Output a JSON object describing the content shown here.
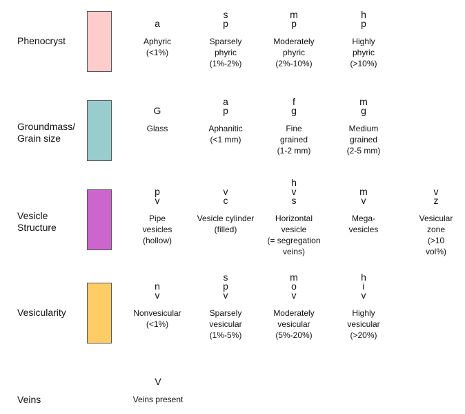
{
  "rows": [
    {
      "label": "Phenocryst",
      "color": "#FFCCCC",
      "items": [
        {
          "code": "a",
          "desc": "Aphyric\n(<1%)"
        },
        {
          "code": "s\np",
          "desc": "Sparsely\nphyric\n(1%-2%)"
        },
        {
          "code": "m\np",
          "desc": "Moderately\nphyric\n(2%-10%)"
        },
        {
          "code": "h\np",
          "desc": "Highly\nphyric\n(>10%)"
        }
      ]
    },
    {
      "label": "Groundmass/\nGrain size",
      "color": "#99CCCC",
      "items": [
        {
          "code": "G",
          "desc": "Glass"
        },
        {
          "code": "a\np",
          "desc": "Aphanitic\n(<1 mm)"
        },
        {
          "code": "f\ng",
          "desc": "Fine\ngrained\n(1-2 mm)"
        },
        {
          "code": "m\ng",
          "desc": "Medium\ngrained\n(2-5 mm)"
        }
      ]
    },
    {
      "label": "Vesicle\nStructure",
      "color": "#CC66CC",
      "items": [
        {
          "code": "p\nv",
          "desc": "Pipe\nvesicles\n(hollow)"
        },
        {
          "code": "v\nc",
          "desc": "Vesicle cylinder\n(filled)"
        },
        {
          "code": "h\nv\ns",
          "desc": "Horizontal\nvesicle\n(= segregation\nveins)"
        },
        {
          "code": "m\nv",
          "desc": "Mega-\nvesicles"
        },
        {
          "code": "v\nz",
          "desc": "Vesicular\nzone\n(>10 vol%)"
        }
      ]
    },
    {
      "label": "Vesicularity",
      "color": "#FFCC66",
      "items": [
        {
          "code": "n\nv",
          "desc": "Nonvesicular\n(<1%)"
        },
        {
          "code": "s\np\nv",
          "desc": "Sparsely\nvesicular\n(1%-5%)"
        },
        {
          "code": "m\no\nv",
          "desc": "Moderately\nvesicular\n(5%-20%)"
        },
        {
          "code": "h\ni\nv",
          "desc": "Highly\nvesicular\n(>20%)"
        }
      ]
    },
    {
      "label": "Veins",
      "items": [
        {
          "code": "V",
          "desc": "Veins present"
        }
      ]
    }
  ]
}
